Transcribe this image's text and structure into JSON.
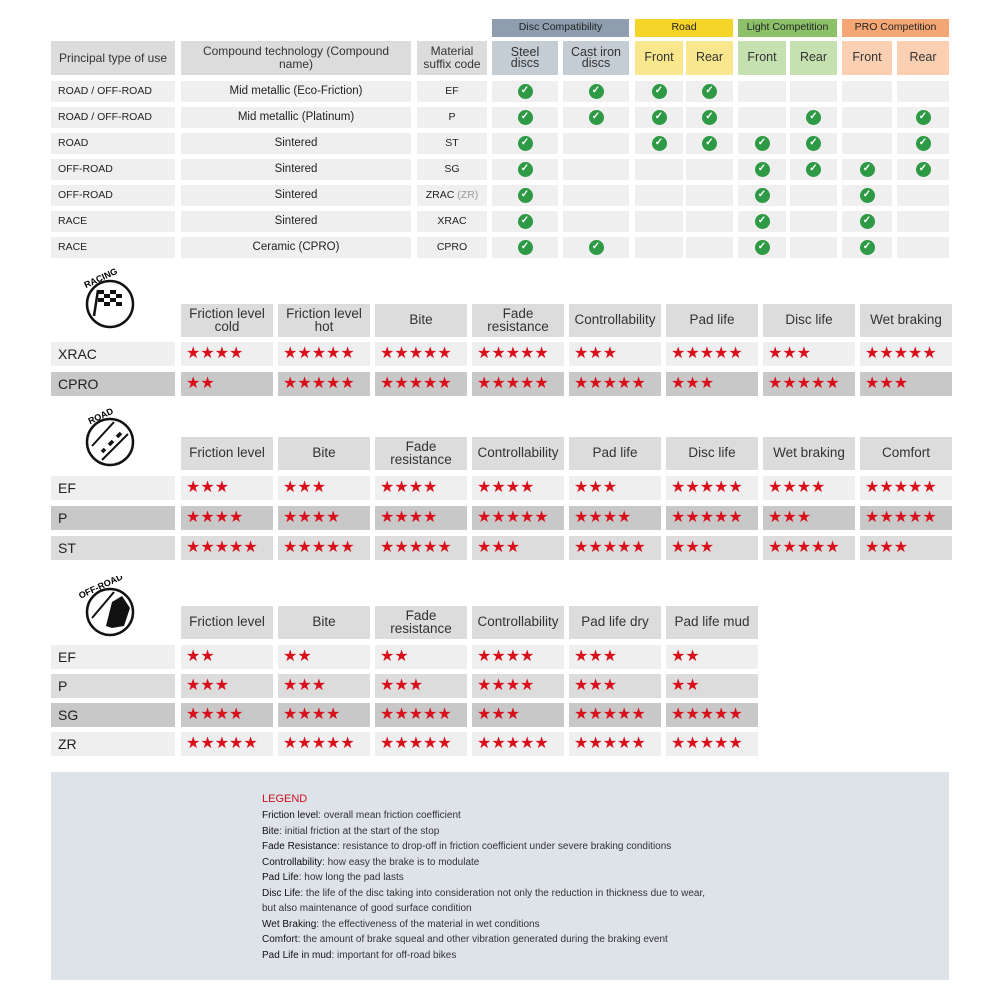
{
  "compat": {
    "groups": [
      {
        "label": "Disc Compatibility",
        "color": "#8e9eae",
        "sub_color": "#c4ccd4"
      },
      {
        "label": "Road",
        "color": "#f5d42a",
        "sub_color": "#f9e78e"
      },
      {
        "label": "Light Competition",
        "color": "#8cc16a",
        "sub_color": "#c5e1b0"
      },
      {
        "label": "PRO Competition",
        "color": "#f4a774",
        "sub_color": "#fbd0b2"
      }
    ],
    "headers": [
      "Principal type of use",
      "Compound technology (Compound name)",
      "Material suffix code",
      "Steel discs",
      "Cast iron discs",
      "Front",
      "Rear",
      "Front",
      "Rear",
      "Front",
      "Rear"
    ],
    "rows": [
      {
        "type": "ROAD / OFF-ROAD",
        "compound": "Mid metallic (Eco-Friction)",
        "code": "EF",
        "code_extra": "",
        "checks": [
          true,
          true,
          true,
          true,
          false,
          false,
          false,
          false
        ]
      },
      {
        "type": "ROAD / OFF-ROAD",
        "compound": "Mid metallic (Platinum)",
        "code": "P",
        "code_extra": "",
        "checks": [
          true,
          true,
          true,
          true,
          false,
          true,
          false,
          true
        ]
      },
      {
        "type": "ROAD",
        "compound": "Sintered",
        "code": "ST",
        "code_extra": "",
        "checks": [
          true,
          false,
          true,
          true,
          true,
          true,
          false,
          true
        ]
      },
      {
        "type": "OFF-ROAD",
        "compound": "Sintered",
        "code": "SG",
        "code_extra": "",
        "checks": [
          true,
          false,
          false,
          false,
          true,
          true,
          true,
          true
        ]
      },
      {
        "type": "OFF-ROAD",
        "compound": "Sintered",
        "code": "ZRAC",
        "code_extra": "(ZR)",
        "checks": [
          true,
          false,
          false,
          false,
          true,
          false,
          true,
          false
        ]
      },
      {
        "type": "RACE",
        "compound": "Sintered",
        "code": "XRAC",
        "code_extra": "",
        "checks": [
          true,
          false,
          false,
          false,
          true,
          false,
          true,
          false
        ]
      },
      {
        "type": "RACE",
        "compound": "Ceramic (CPRO)",
        "code": "CPRO",
        "code_extra": "",
        "checks": [
          true,
          true,
          false,
          false,
          true,
          false,
          true,
          false
        ]
      }
    ],
    "check_color": "#2e9a46"
  },
  "ratings": [
    {
      "badge": "RACING",
      "icon": "checkered-flag-icon",
      "headers": [
        "Friction level cold",
        "Friction level hot",
        "Bite",
        "Fade resistance",
        "Controllability",
        "Pad life",
        "Disc life",
        "Wet braking"
      ],
      "rows": [
        {
          "code": "XRAC",
          "shade": "light",
          "stars": [
            4,
            5,
            5,
            5,
            3,
            5,
            3,
            5
          ]
        },
        {
          "code": "CPRO",
          "shade": "dark",
          "stars": [
            2,
            5,
            5,
            5,
            5,
            3,
            5,
            3
          ]
        }
      ]
    },
    {
      "badge": "ROAD",
      "icon": "road-icon",
      "headers": [
        "Friction level",
        "Bite",
        "Fade resistance",
        "Controllability",
        "Pad life",
        "Disc life",
        "Wet braking",
        "Comfort"
      ],
      "rows": [
        {
          "code": "EF",
          "shade": "light",
          "stars": [
            3,
            3,
            4,
            4,
            3,
            5,
            4,
            5
          ]
        },
        {
          "code": "P",
          "shade": "dark",
          "stars": [
            4,
            4,
            4,
            5,
            4,
            5,
            3,
            5
          ]
        },
        {
          "code": "ST",
          "shade": "medium",
          "stars": [
            5,
            5,
            5,
            3,
            5,
            3,
            5,
            3
          ]
        }
      ]
    },
    {
      "badge": "OFF-ROAD",
      "icon": "off-road-icon",
      "headers": [
        "Friction level",
        "Bite",
        "Fade resistance",
        "Controllability",
        "Pad life dry",
        "Pad life mud"
      ],
      "rows": [
        {
          "code": "EF",
          "shade": "light",
          "stars": [
            2,
            2,
            2,
            4,
            3,
            2
          ]
        },
        {
          "code": "P",
          "shade": "medium",
          "stars": [
            3,
            3,
            3,
            4,
            3,
            2
          ]
        },
        {
          "code": "SG",
          "shade": "dark",
          "stars": [
            4,
            4,
            5,
            3,
            5,
            5
          ]
        },
        {
          "code": "ZR",
          "shade": "light",
          "stars": [
            5,
            5,
            5,
            5,
            5,
            5
          ]
        }
      ]
    }
  ],
  "star_color": "#d8101c",
  "legend": {
    "title": "LEGEND",
    "title_color": "#d01020",
    "items": [
      {
        "term": "Friction level",
        "desc": ": overall mean friction coefficient"
      },
      {
        "term": "Bite",
        "desc": ": initial friction at the start of the stop"
      },
      {
        "term": "Fade Resistance",
        "desc": ": resistance to drop-off in friction coefficient under severe braking conditions"
      },
      {
        "term": "Controllability",
        "desc": ": how easy the brake is to modulate"
      },
      {
        "term": "Pad Life",
        "desc": ": how long the pad lasts"
      },
      {
        "term": "Disc Life",
        "desc": ": the life of the disc taking into consideration not only the reduction in thickness due to wear,"
      },
      {
        "term": "",
        "desc": "but also maintenance of good surface condition"
      },
      {
        "term": "Wet Braking",
        "desc": ": the effectiveness of the material in wet conditions"
      },
      {
        "term": "Comfort",
        "desc": ": the amount of brake squeal and other vibration generated during the braking event"
      },
      {
        "term": "Pad Life in mud",
        "desc": ": important for off-road bikes"
      }
    ]
  }
}
